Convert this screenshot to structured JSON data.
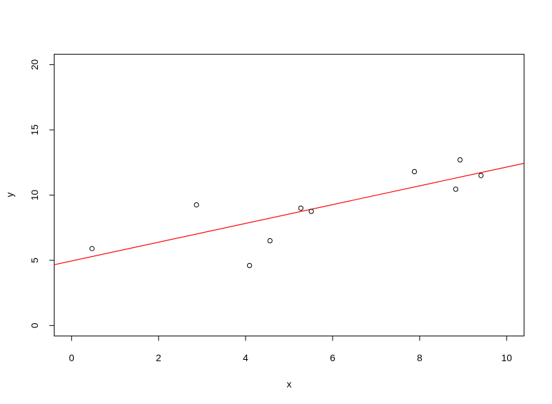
{
  "chart_data": {
    "type": "scatter",
    "title": "",
    "xlabel": "x",
    "ylabel": "y",
    "xlim": [
      -0.4,
      10.4
    ],
    "ylim": [
      -0.8,
      20.8
    ],
    "xticks": [
      0,
      2,
      4,
      6,
      8,
      10
    ],
    "yticks": [
      0,
      5,
      10,
      15,
      20
    ],
    "grid": false,
    "points": [
      {
        "x": 0.47,
        "y": 5.9
      },
      {
        "x": 2.87,
        "y": 9.25
      },
      {
        "x": 4.09,
        "y": 4.6
      },
      {
        "x": 4.56,
        "y": 6.5
      },
      {
        "x": 5.27,
        "y": 9.0
      },
      {
        "x": 5.51,
        "y": 8.75
      },
      {
        "x": 7.88,
        "y": 11.8
      },
      {
        "x": 8.83,
        "y": 10.45
      },
      {
        "x": 8.93,
        "y": 12.7
      },
      {
        "x": 9.41,
        "y": 11.5
      }
    ],
    "fit_line": {
      "intercept": 4.95,
      "slope": 0.72,
      "color": "#ff0000"
    }
  }
}
